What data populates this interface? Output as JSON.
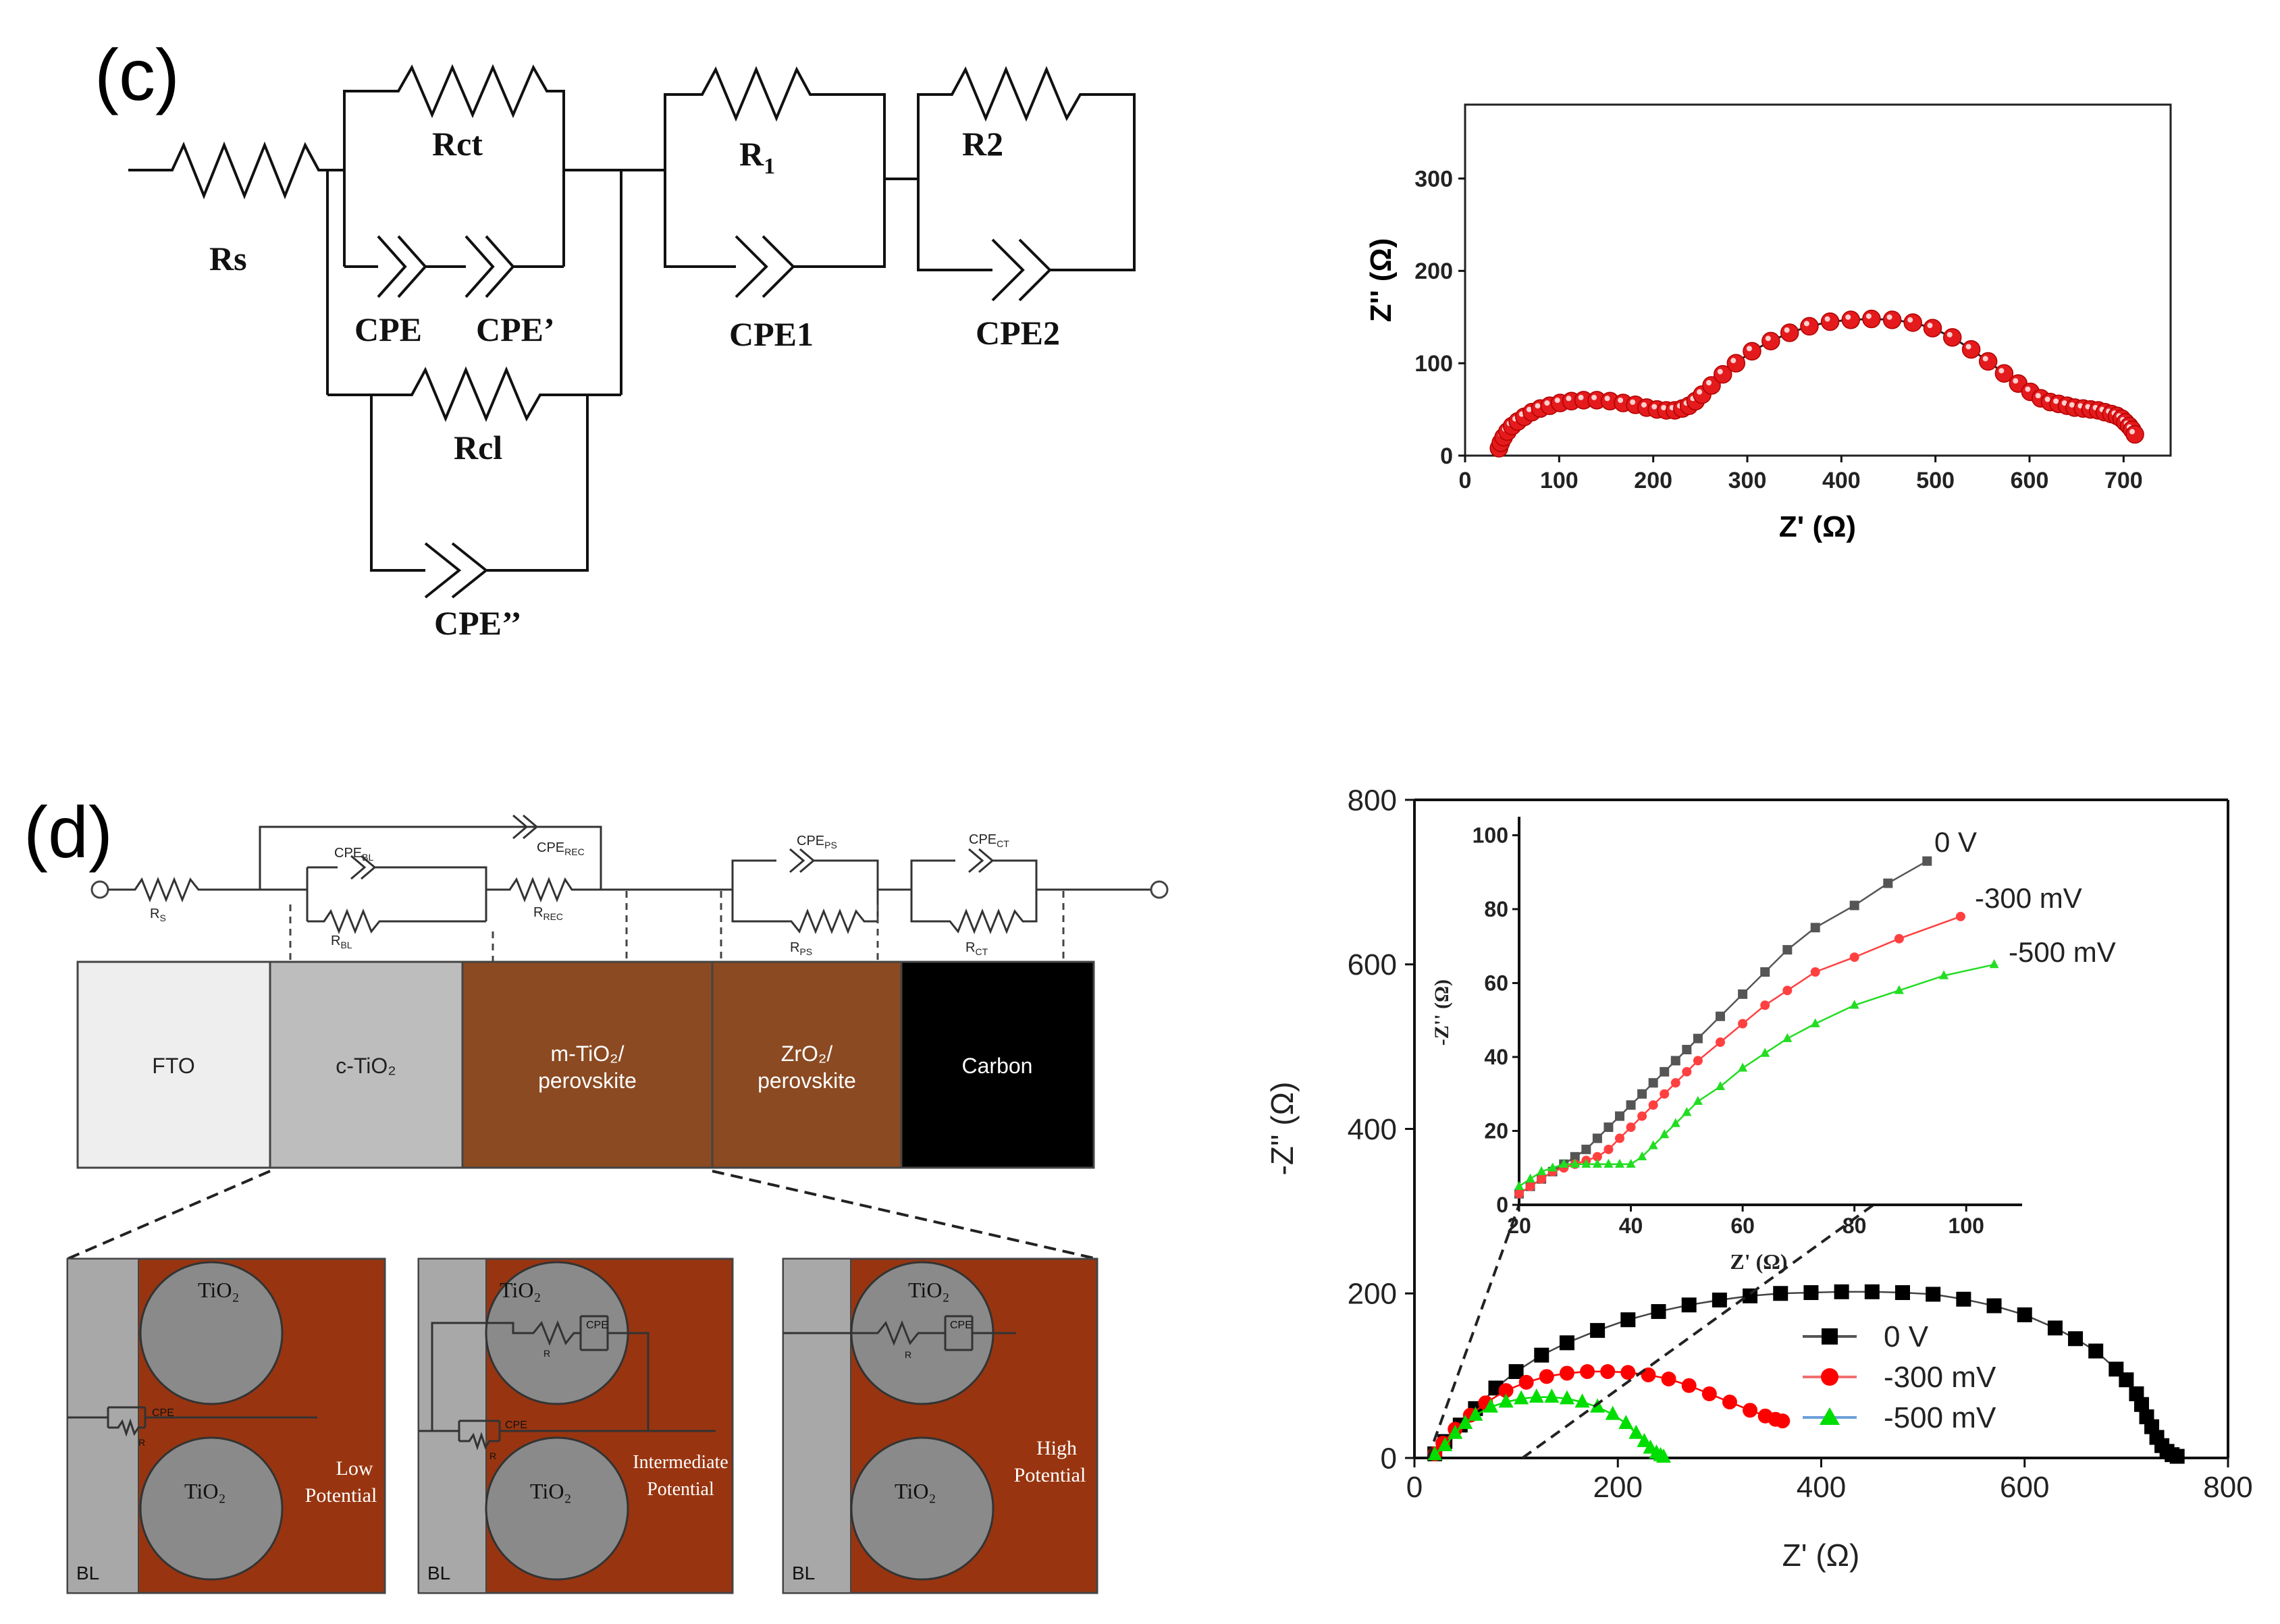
{
  "panel_c": {
    "label": "(c)",
    "circuit": {
      "labels": {
        "rs": "Rs",
        "rct": "Rct",
        "cpe": "CPE",
        "cpe_prime": "CPE’",
        "rcl": "Rcl",
        "cpe_dprime": "CPE’’",
        "r1_main": "R",
        "r1_sub": "1",
        "cpe1": "CPE1",
        "r2": "R2",
        "cpe2": "CPE2"
      }
    },
    "chart_data": {
      "type": "scatter",
      "xlabel": "Z' (Ω)",
      "ylabel": "Z'' (Ω)",
      "xlim": [
        0,
        750
      ],
      "ylim": [
        0,
        380
      ],
      "xticks": [
        0,
        100,
        200,
        300,
        400,
        500,
        600,
        700
      ],
      "yticks": [
        0,
        100,
        200,
        300
      ],
      "series": [
        {
          "name": "data",
          "color": "#e41a1c",
          "fit": true,
          "x": [
            36,
            38,
            41,
            45,
            50,
            56,
            63,
            71,
            80,
            90,
            101,
            113,
            126,
            140,
            154,
            168,
            181,
            193,
            204,
            214,
            223,
            231,
            238,
            245,
            252,
            262,
            274,
            288,
            305,
            325,
            345,
            366,
            388,
            410,
            432,
            454,
            476,
            497,
            518,
            538,
            556,
            573,
            588,
            601,
            612,
            622,
            631,
            640,
            648,
            657,
            665,
            673,
            680,
            687,
            693,
            698,
            702,
            706,
            709,
            712
          ],
          "y": [
            8,
            14,
            20,
            26,
            32,
            37,
            42,
            47,
            51,
            54,
            57,
            59,
            60,
            60,
            59,
            57,
            55,
            52,
            50,
            49,
            49,
            51,
            54,
            59,
            66,
            76,
            88,
            100,
            113,
            124,
            133,
            140,
            145,
            147,
            148,
            147,
            144,
            138,
            128,
            115,
            102,
            89,
            78,
            69,
            62,
            58,
            56,
            54,
            52,
            51,
            50,
            49,
            47,
            45,
            43,
            40,
            36,
            32,
            28,
            23
          ]
        }
      ]
    }
  },
  "panel_d": {
    "label": "(d)",
    "circuit": {
      "rs": "R",
      "rs_sub": "S",
      "cpe_bl": "CPE",
      "cpe_bl_sub": "BL",
      "r_bl": "R",
      "r_bl_sub": "BL",
      "cpe_rec": "CPE",
      "cpe_rec_sub": "REC",
      "r_rec": "R",
      "r_rec_sub": "REC",
      "cpe_ps": "CPE",
      "cpe_ps_sub": "PS",
      "r_ps": "R",
      "r_ps_sub": "PS",
      "cpe_ct": "CPE",
      "cpe_ct_sub": "CT",
      "r_ct": "R",
      "r_ct_sub": "CT"
    },
    "layers": [
      {
        "line1": "FTO",
        "line2": "",
        "color": "#eeeeee",
        "text_color": "#222222"
      },
      {
        "line1": "c-TiO₂",
        "line2": "",
        "color": "#bdbdbd",
        "text_color": "#222222"
      },
      {
        "line1": "m-TiO₂/",
        "line2": "perovskite",
        "color": "#8b4a22",
        "text_color": "#ffffff"
      },
      {
        "line1": "ZrO₂/",
        "line2": "perovskite",
        "color": "#8b4a22",
        "text_color": "#ffffff"
      },
      {
        "line1": "Carbon",
        "line2": "",
        "color": "#000000",
        "text_color": "#ffffff"
      }
    ],
    "insets": [
      {
        "tio2": "TiO₂",
        "bl": "BL",
        "cpe": "CPE",
        "r": "R",
        "line1": "Low",
        "line2": "Potential"
      },
      {
        "tio2": "TiO₂",
        "bl": "BL",
        "cpe": "CPE",
        "r": "R",
        "line1": "Intermediate",
        "line2": "Potential"
      },
      {
        "tio2": "TiO₂",
        "bl": "BL",
        "cpe": "CPE",
        "r": "R",
        "line1": "High",
        "line2": "Potential"
      }
    ],
    "chart_data": [
      {
        "type": "line",
        "xlabel": "Z' (Ω)",
        "ylabel": "-Z'' (Ω)",
        "xlim": [
          0,
          800
        ],
        "ylim": [
          0,
          800
        ],
        "xticks": [
          0,
          200,
          400,
          600,
          800
        ],
        "yticks": [
          0,
          200,
          400,
          600,
          800
        ],
        "legend": "bottom-right",
        "series": [
          {
            "name": "0 V",
            "color": "#000000",
            "marker": "square",
            "x": [
              20,
              30,
              45,
              60,
              80,
              100,
              125,
              150,
              180,
              210,
              240,
              270,
              300,
              330,
              360,
              390,
              420,
              450,
              480,
              510,
              540,
              570,
              600,
              630,
              650,
              670,
              690,
              700,
              710,
              715,
              720,
              725,
              730,
              735,
              740,
              745,
              750
            ],
            "y": [
              5,
              20,
              40,
              60,
              85,
              105,
              125,
              140,
              155,
              168,
              178,
              186,
              192,
              197,
              200,
              201,
              202,
              202,
              201,
              199,
              193,
              185,
              174,
              158,
              145,
              130,
              108,
              95,
              78,
              65,
              50,
              38,
              25,
              15,
              8,
              4,
              2
            ]
          },
          {
            "name": "-300 mV",
            "color": "#ff0000",
            "marker": "circle",
            "x": [
              20,
              28,
              40,
              55,
              70,
              90,
              110,
              130,
              150,
              170,
              190,
              210,
              230,
              250,
              270,
              290,
              310,
              330,
              345,
              355,
              362
            ],
            "y": [
              5,
              18,
              35,
              52,
              67,
              82,
              92,
              99,
              103,
              105,
              105,
              104,
              101,
              96,
              88,
              78,
              68,
              58,
              51,
              47,
              45
            ]
          },
          {
            "name": "-500 mV",
            "color": "#00dd00",
            "marker": "triangle",
            "x": [
              20,
              30,
              40,
              50,
              60,
              75,
              90,
              105,
              120,
              135,
              150,
              165,
              180,
              195,
              208,
              218,
              226,
              232,
              238,
              242,
              245
            ],
            "y": [
              4,
              15,
              30,
              42,
              52,
              62,
              68,
              72,
              74,
              74,
              72,
              68,
              62,
              53,
              42,
              30,
              20,
              12,
              6,
              3,
              1
            ]
          }
        ]
      },
      {
        "type": "line",
        "role": "inset",
        "xlabel": "Z' (Ω)",
        "ylabel": "-Z'' (Ω)",
        "xlim": [
          20,
          110
        ],
        "ylim": [
          0,
          105
        ],
        "xticks": [
          20,
          40,
          60,
          80,
          100
        ],
        "yticks": [
          0,
          20,
          40,
          60,
          80,
          100
        ],
        "series": [
          {
            "name": "0 V",
            "label": "0 V",
            "color": "#555555",
            "marker": "square",
            "x": [
              20,
              22,
              24,
              26,
              28,
              30,
              32,
              34,
              36,
              38,
              40,
              42,
              44,
              46,
              48,
              50,
              52,
              56,
              60,
              64,
              68,
              73,
              80,
              86,
              93
            ],
            "y": [
              3,
              5,
              7,
              9,
              11,
              13,
              15,
              18,
              21,
              24,
              27,
              30,
              33,
              36,
              39,
              42,
              45,
              51,
              57,
              63,
              69,
              75,
              81,
              87,
              93
            ]
          },
          {
            "name": "-300 mV",
            "label": "-300 mV",
            "color": "#ff4040",
            "marker": "circle",
            "x": [
              20,
              22,
              24,
              26,
              28,
              30,
              32,
              34,
              36,
              38,
              40,
              42,
              44,
              46,
              48,
              50,
              52,
              56,
              60,
              64,
              68,
              73,
              80,
              88,
              99
            ],
            "y": [
              3,
              5,
              7,
              9,
              10,
              11,
              12,
              13,
              15,
              18,
              21,
              24,
              27,
              30,
              33,
              36,
              39,
              44,
              49,
              54,
              58,
              63,
              67,
              72,
              78
            ]
          },
          {
            "name": "-500 mV",
            "label": "-500 mV",
            "color": "#22dd22",
            "marker": "triangle",
            "x": [
              20,
              22,
              24,
              26,
              28,
              30,
              32,
              34,
              36,
              38,
              40,
              42,
              44,
              46,
              48,
              50,
              52,
              56,
              60,
              64,
              68,
              73,
              80,
              88,
              96,
              105
            ],
            "y": [
              5,
              7,
              9,
              10,
              11,
              11,
              11,
              11,
              11,
              11,
              11,
              13,
              16,
              19,
              22,
              25,
              28,
              32,
              37,
              41,
              45,
              49,
              54,
              58,
              62,
              65
            ]
          }
        ]
      }
    ]
  }
}
